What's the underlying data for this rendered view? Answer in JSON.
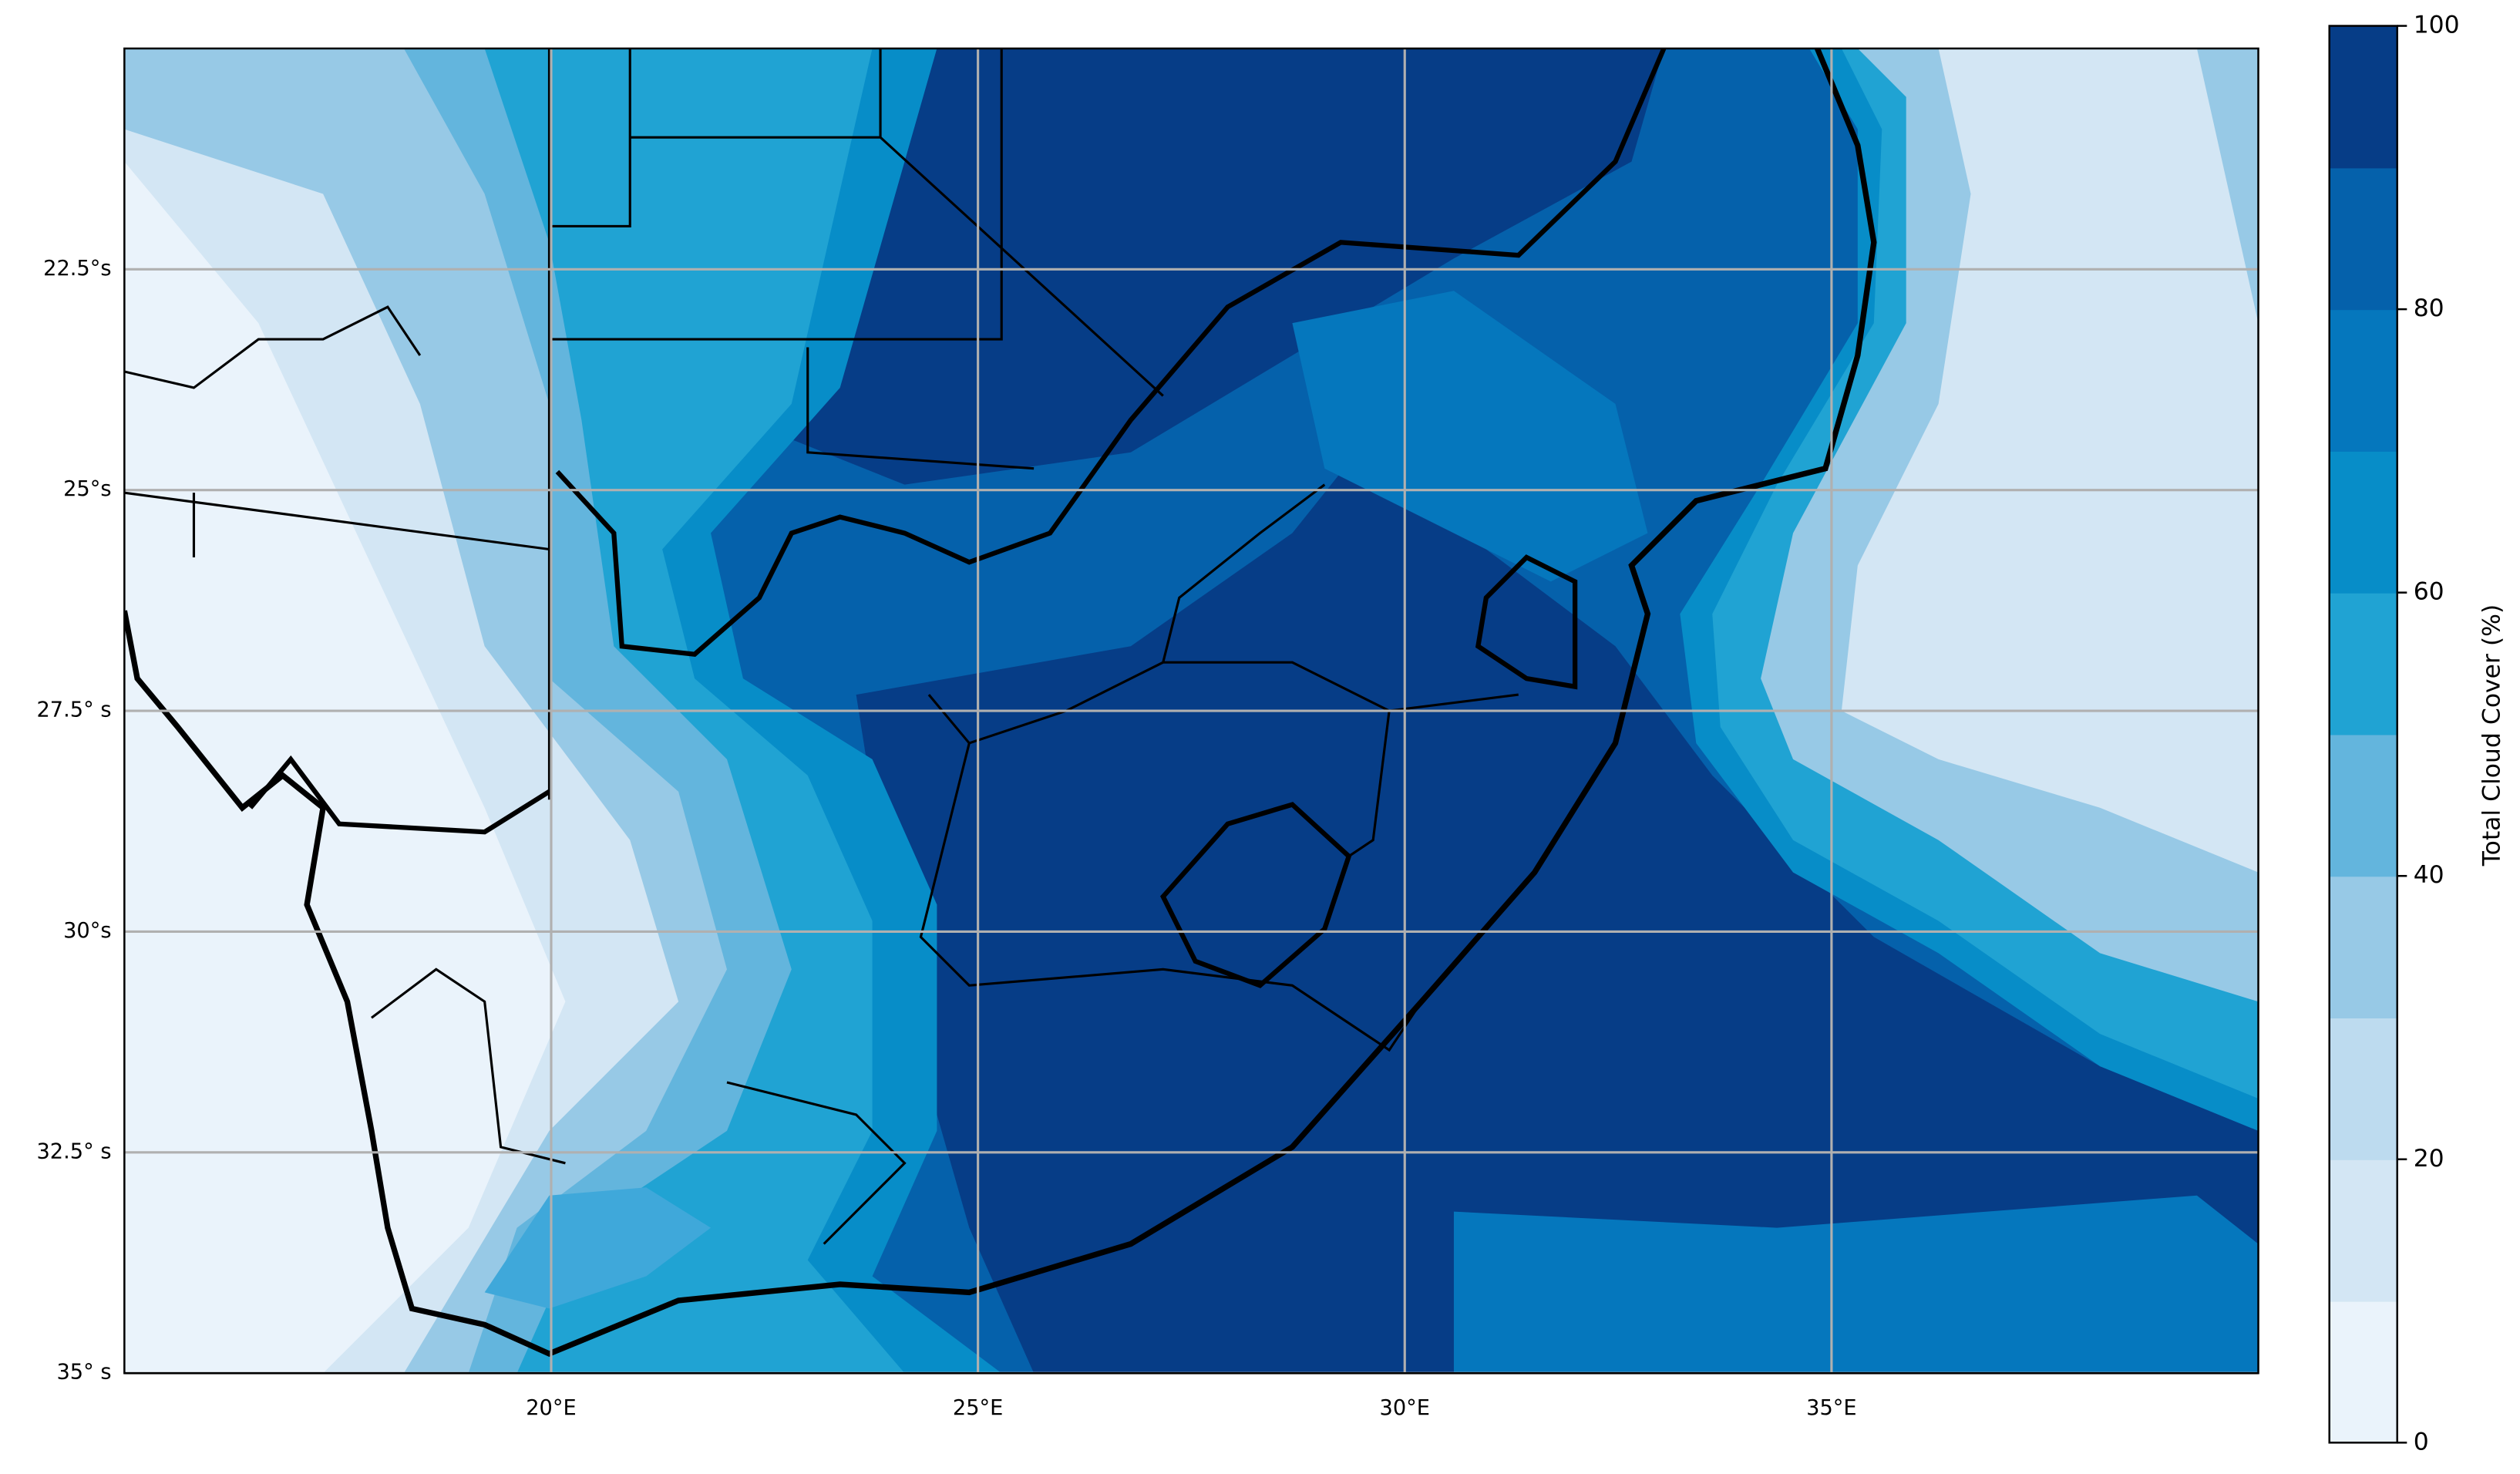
{
  "map": {
    "xlim": [
      15,
      40
    ],
    "ylim": [
      -35,
      -20
    ],
    "xticks": [
      {
        "value": 20,
        "label": "20°E"
      },
      {
        "value": 25,
        "label": "25°E"
      },
      {
        "value": 30,
        "label": "30°E"
      },
      {
        "value": 35,
        "label": "35°E"
      }
    ],
    "yticks": [
      {
        "value": -22.5,
        "label": "22.5°s"
      },
      {
        "value": -25,
        "label": "25°s"
      },
      {
        "value": -27.5,
        "label": "27.5° s"
      },
      {
        "value": -30,
        "label": "30°s"
      },
      {
        "value": -32.5,
        "label": "32.5° s"
      },
      {
        "value": -35,
        "label": "35° s"
      }
    ],
    "grid": true,
    "colorbar": {
      "label": "Total Cloud Cover (%)",
      "lim": [
        0,
        100
      ],
      "ticks": [
        0,
        20,
        40,
        60,
        80,
        100
      ],
      "colors": [
        "#eaf3fb",
        "#d3e6f4",
        "#bddbef",
        "#97c9e6",
        "#63b5dd",
        "#20a3d3",
        "#078dc8",
        "#0577bd",
        "#0561ab",
        "#063d87"
      ]
    }
  }
}
